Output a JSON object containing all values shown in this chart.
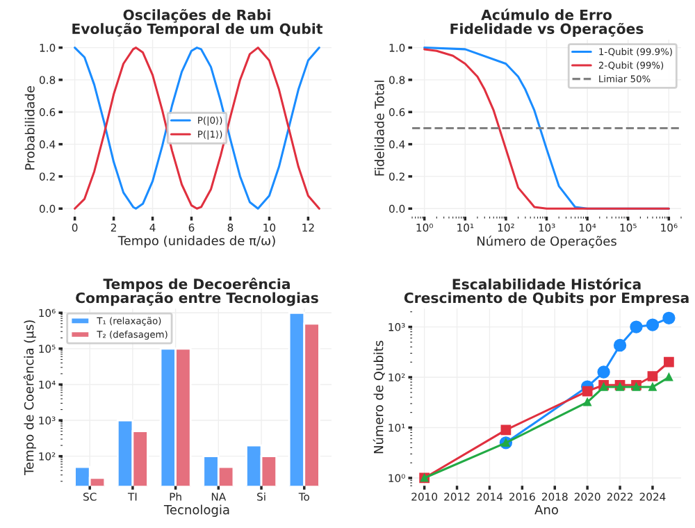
{
  "chart_data": [
    {
      "type": "line",
      "title": "Oscilações de Rabi\nEvolução Temporal de um Qubit",
      "xlabel": "Tempo (unidades de π/ω)",
      "ylabel": "Probabilidade",
      "x": [
        0,
        0.5,
        1,
        1.5,
        2,
        2.5,
        3,
        3.14,
        3.5,
        4,
        4.5,
        5,
        5.5,
        6,
        6.28,
        6.5,
        7,
        7.5,
        8,
        8.5,
        9,
        9.42,
        10,
        10.5,
        11,
        11.5,
        12,
        12.57
      ],
      "series": [
        {
          "name": "P(|0⟩)",
          "color": "#1a8cff",
          "values": [
            1.0,
            0.94,
            0.77,
            0.54,
            0.29,
            0.1,
            0.01,
            0.0,
            0.03,
            0.17,
            0.39,
            0.64,
            0.85,
            0.98,
            1.0,
            0.99,
            0.88,
            0.67,
            0.43,
            0.2,
            0.04,
            0.0,
            0.08,
            0.26,
            0.5,
            0.74,
            0.92,
            1.0
          ]
        },
        {
          "name": "P(|1⟩)",
          "color": "#e0303f",
          "values": [
            0.0,
            0.06,
            0.23,
            0.46,
            0.71,
            0.9,
            0.99,
            1.0,
            0.97,
            0.83,
            0.61,
            0.36,
            0.15,
            0.02,
            0.0,
            0.01,
            0.12,
            0.33,
            0.57,
            0.8,
            0.96,
            1.0,
            0.92,
            0.74,
            0.5,
            0.26,
            0.08,
            0.0
          ]
        }
      ],
      "xlim": [
        -0.63,
        13.2
      ],
      "ylim": [
        -0.05,
        1.05
      ],
      "xticks": [
        0,
        2,
        4,
        6,
        8,
        10,
        12
      ],
      "yticks": [
        {
          "value": 0,
          "label": "0.0"
        },
        0.2,
        0.4,
        0.6,
        0.8,
        {
          "value": 1,
          "label": "1.0"
        }
      ],
      "grid": true,
      "legend": "center"
    },
    {
      "type": "line",
      "title": "Acúmulo de Erro\nFidelidade vs Operações",
      "xlabel": "Número de Operações",
      "ylabel": "Fidelidade Total",
      "log": "x",
      "series": [
        {
          "name": "1-Qubit (99.9%)",
          "color": "#1a8cff",
          "x": [
            1,
            10,
            100,
            200,
            300,
            500,
            1000,
            2000,
            5000,
            10000,
            100000,
            1000000
          ],
          "values": [
            1.0,
            0.99,
            0.9,
            0.82,
            0.74,
            0.61,
            0.37,
            0.14,
            0.01,
            0.0,
            0.0,
            0.0
          ]
        },
        {
          "name": "2-Qubit (99%)",
          "color": "#e0303f",
          "x": [
            1,
            2,
            5,
            10,
            20,
            30,
            50,
            100,
            200,
            500,
            1000,
            1000000
          ],
          "values": [
            0.99,
            0.98,
            0.95,
            0.9,
            0.82,
            0.74,
            0.61,
            0.37,
            0.13,
            0.01,
            0.0,
            0.0
          ]
        }
      ],
      "ref_lines": [
        {
          "axis": "y",
          "value": 0.5,
          "label": "Limiar 50%",
          "color": "#808080",
          "line_style": "dashed"
        }
      ],
      "xlim": [
        0.5,
        2000000
      ],
      "ylim": [
        -0.05,
        1.05
      ],
      "xticks": [
        {
          "value": 1,
          "label": "10⁰"
        },
        {
          "value": 10,
          "label": "10¹"
        },
        {
          "value": 100,
          "label": "10²"
        },
        {
          "value": 1000,
          "label": "10³"
        },
        {
          "value": 10000,
          "label": "10⁴"
        },
        {
          "value": 100000,
          "label": "10⁵"
        },
        {
          "value": 1000000,
          "label": "10⁶"
        }
      ],
      "yticks": [
        {
          "value": 0,
          "label": "0.0"
        },
        0.2,
        0.4,
        0.6,
        0.8,
        {
          "value": 1,
          "label": "1.0"
        }
      ],
      "grid": true,
      "legend": "top right"
    },
    {
      "type": "bar",
      "title": "Tempos de Decoerência\nComparação entre Tecnologias",
      "xlabel": "Tecnologia",
      "ylabel": "Tempo de Coerência (μs)",
      "log": "y",
      "categories": [
        "SC",
        "TI",
        "Ph",
        "NA",
        "Si",
        "To"
      ],
      "series": [
        {
          "name": "T₁ (relaxação)",
          "color": "#4da3ff",
          "values": [
            50,
            1000,
            100000,
            100,
            200,
            1000000
          ]
        },
        {
          "name": "T₂ (defasagem)",
          "color": "#e5707e",
          "values": [
            25,
            500,
            100000,
            50,
            100,
            500000
          ]
        }
      ],
      "ylim": [
        15,
        1300000
      ],
      "yticks": [
        {
          "value": 100,
          "label": "10²"
        },
        {
          "value": 1000,
          "label": "10³"
        },
        {
          "value": 10000,
          "label": "10⁴"
        },
        {
          "value": 100000,
          "label": "10⁵"
        },
        {
          "value": 1000000,
          "label": "10⁶"
        }
      ],
      "grid": true,
      "legend": "top left"
    },
    {
      "type": "line",
      "title": "Escalabilidade Histórica\nCrescimento de Qubits por Empresa",
      "xlabel": "Ano",
      "ylabel": "Número de Qubits",
      "log": "y",
      "series": [
        {
          "color": "#1a8cff",
          "marker": "circle",
          "x": [
            2015,
            2020,
            2021,
            2022,
            2023,
            2024,
            2025
          ],
          "values": [
            5,
            65,
            127,
            433,
            1000,
            1100,
            1500
          ]
        },
        {
          "color": "#e0303f",
          "marker": "square",
          "x": [
            2010,
            2015,
            2020,
            2021,
            2022,
            2023,
            2024,
            2025
          ],
          "values": [
            1,
            9,
            53,
            70,
            70,
            70,
            105,
            200
          ]
        },
        {
          "color": "#22aa44",
          "marker": "triangle",
          "x": [
            2010,
            2015,
            2020,
            2021,
            2022,
            2023,
            2024,
            2025
          ],
          "values": [
            1,
            5,
            32,
            64,
            64,
            64,
            64,
            100
          ]
        }
      ],
      "xlim": [
        2009.25,
        2025.75
      ],
      "ylim": [
        0.7,
        2300
      ],
      "xticks": [
        2010,
        2012,
        2014,
        2016,
        2018,
        2020,
        2022,
        2024
      ],
      "yticks": [
        {
          "value": 1,
          "label": "10⁰"
        },
        {
          "value": 10,
          "label": "10¹"
        },
        {
          "value": 100,
          "label": "10²"
        },
        {
          "value": 1000,
          "label": "10³"
        }
      ],
      "grid": true
    }
  ]
}
